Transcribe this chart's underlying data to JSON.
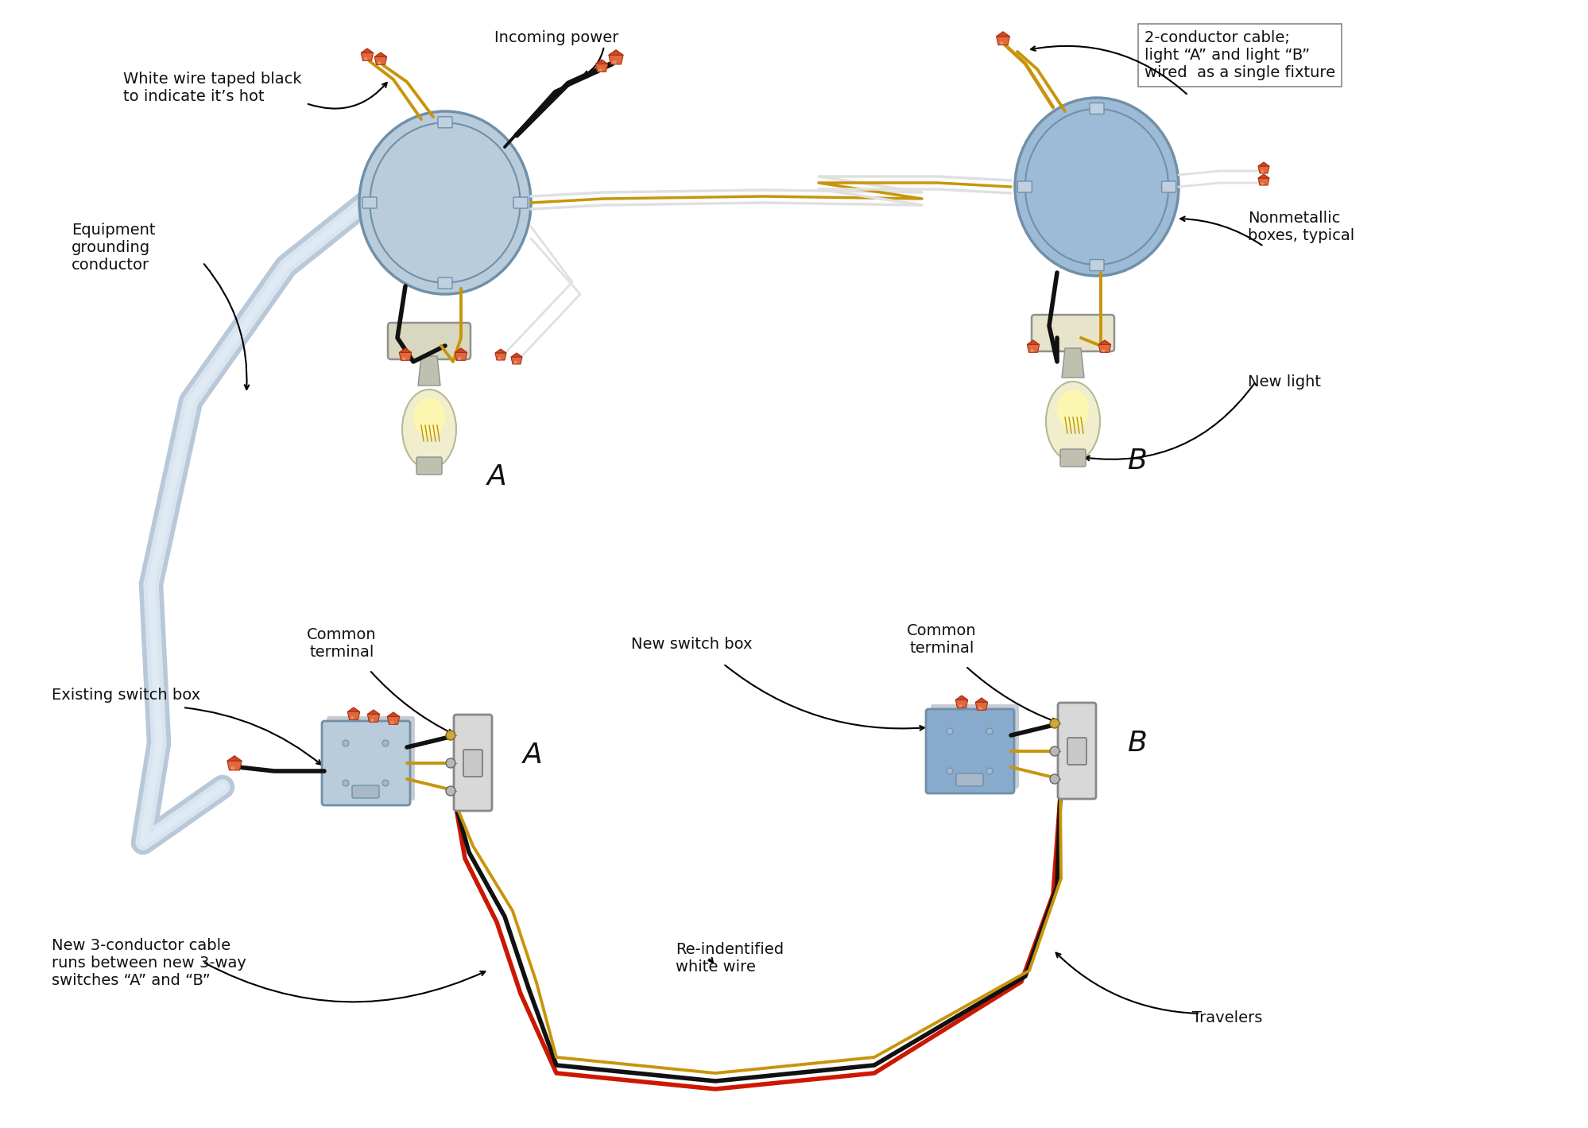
{
  "bg_color": "#ffffff",
  "wire_black": "#111111",
  "wire_white": "#e0e0e0",
  "wire_gold": "#c8950a",
  "wire_red": "#cc1800",
  "wire_green": "#226622",
  "conduit_fill": "#c8d8e8",
  "conduit_edge": "#a0b8cc",
  "box_fill": "#b8d0e8",
  "box_edge": "#7090a8",
  "box_fill_b": "#88aacc",
  "switch_fill": "#d8d8d8",
  "switch_edge": "#888888",
  "fixture_fill": "#d8d8c0",
  "fixture_fill_b": "#e8e4cc",
  "bulb_fill": "#f0eecc",
  "bulb_glow": "#fffaaa",
  "cap_fill": "#e06840",
  "cap_highlight": "#f0a070",
  "label_color": "#111111",
  "annotations": {
    "white_wire_taped": "White wire taped black\nto indicate it’s hot",
    "incoming_power": "Incoming power",
    "conductor_cable": "2-conductor cable;\nlight “A” and light “B”\nwired  as a single fixture",
    "equipment_grounding": "Equipment\ngrounding\nconductor",
    "nonmetallic": "Nonmetallic\nboxes, typical",
    "new_light": "New light",
    "existing_switch_box": "Existing switch box",
    "common_terminal_A": "Common\nterminal",
    "new_switch_box": "New switch box",
    "common_terminal_B": "Common\nterminal",
    "new_3conductor": "New 3-conductor cable\nruns between new 3-way\nswitches “A” and “B”",
    "reidentified": "Re-indentified\nwhite wire",
    "travelers": "Travelers",
    "label_A_top": "A",
    "label_B_top": "B",
    "label_A_bot": "A",
    "label_B_bot": "B"
  },
  "font_size": 14
}
